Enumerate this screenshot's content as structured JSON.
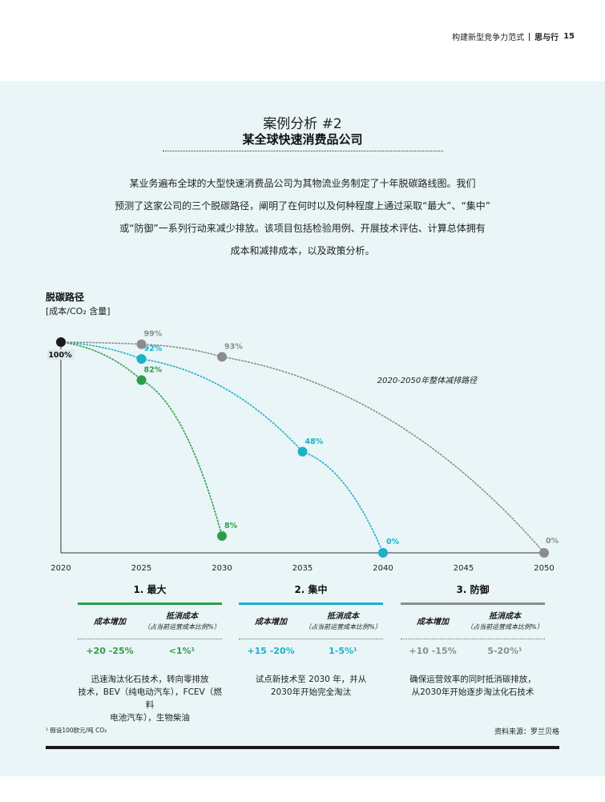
{
  "header": {
    "title": "构建新型竞争力范式",
    "section": "思与行",
    "page": "15"
  },
  "case": {
    "label": "案例分析 #2",
    "title": "某全球快速消费品公司",
    "intro_lines": [
      "某业务遍布全球的大型快速消费品公司为其物流业务制定了十年脱碳路线图。我们",
      "预测了这家公司的三个脱碳路径，阐明了在何时以及何种程度上通过采取“最大”、“集中”",
      "或“防御”一系列行动来减少排放。该项目包括检验用例、开展技术评估、计算总体拥有",
      "成本和减排成本，以及政策分析。"
    ]
  },
  "chart_data": {
    "type": "line",
    "title": "脱碳路径",
    "ylabel": "[成本/CO₂ 含量]",
    "xlim": [
      2020,
      2050
    ],
    "ylim": [
      0,
      100
    ],
    "x_ticks": [
      "2020",
      "2025",
      "2030",
      "2035",
      "2040",
      "2045",
      "2050"
    ],
    "start": {
      "x": 2020,
      "y": 100,
      "label": "100%"
    },
    "annotation": "2020-2050年整体减排路径",
    "series": [
      {
        "key": "max",
        "color": "#2e9e46",
        "points": [
          {
            "x": 2020,
            "y": 100
          },
          {
            "x": 2025,
            "y": 82,
            "label": "82%"
          },
          {
            "x": 2030,
            "y": 8,
            "label": "8%"
          }
        ]
      },
      {
        "key": "focus",
        "color": "#1ab2c9",
        "points": [
          {
            "x": 2020,
            "y": 100
          },
          {
            "x": 2025,
            "y": 92,
            "label": "92%"
          },
          {
            "x": 2035,
            "y": 48,
            "label": "48%"
          },
          {
            "x": 2040,
            "y": 0,
            "label": "0%"
          }
        ]
      },
      {
        "key": "defend",
        "color": "#8c8c8c",
        "points": [
          {
            "x": 2020,
            "y": 100
          },
          {
            "x": 2025,
            "y": 99,
            "label": "99%"
          },
          {
            "x": 2030,
            "y": 93,
            "label": "93%"
          },
          {
            "x": 2050,
            "y": 0,
            "label": "0%"
          }
        ]
      }
    ]
  },
  "columns_header": {
    "cost": "成本增加",
    "offset": "抵消成本",
    "offset_sub": "（占当前运营成本比例%）"
  },
  "columns": [
    {
      "title": "1. 最大",
      "color": "#2e9e46",
      "cost": "+20 -25%",
      "offset": "<1%¹",
      "desc": [
        "迅速淘汰化石技术，转向零排放",
        "技术，BEV（纯电动汽车），FCEV（燃料",
        "电池汽车），生物柴油"
      ]
    },
    {
      "title": "2. 集中",
      "color": "#1ab2c9",
      "cost": "+15 -20%",
      "offset": "1-5%¹",
      "desc": [
        "试点新技术至 2030 年，并从",
        "2030年开始完全淘汰"
      ]
    },
    {
      "title": "3. 防御",
      "color": "#8c8c8c",
      "cost": "+10 -15%",
      "offset": "5-20%¹",
      "desc": [
        "确保运营效率的同时抵消碳排放，",
        "从2030年开始逐步淘汰化石技术"
      ]
    }
  ],
  "footnote": "¹ 假设100欧元/吨 CO₂",
  "source": "资料来源：罗兰贝格"
}
